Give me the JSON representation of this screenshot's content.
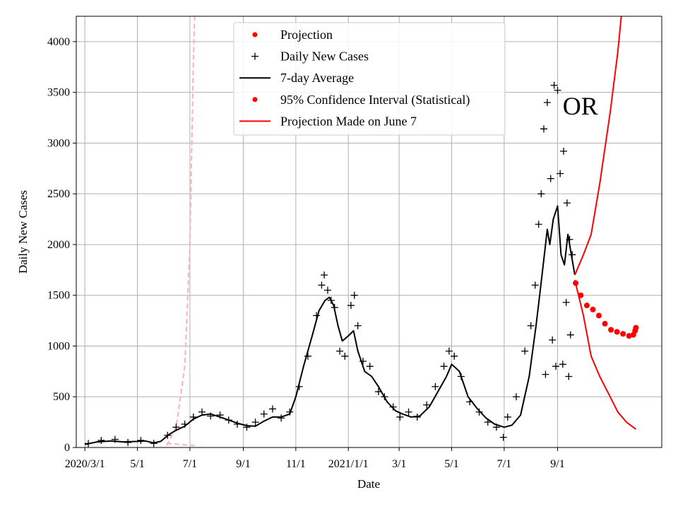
{
  "chart_data": {
    "type": "line",
    "title": "",
    "xlabel": "Date",
    "ylabel": "Daily New Cases",
    "x_unit": "date",
    "xlim": [
      "2020-02-20",
      "2021-12-31"
    ],
    "ylim": [
      0,
      4250
    ],
    "grid": true,
    "legend_placement": "top-center",
    "x_ticks": [
      {
        "date": "2020-03-01",
        "label": "2020/3/1"
      },
      {
        "date": "2020-05-01",
        "label": "5/1"
      },
      {
        "date": "2020-07-01",
        "label": "7/1"
      },
      {
        "date": "2020-09-01",
        "label": "9/1"
      },
      {
        "date": "2020-11-01",
        "label": "11/1"
      },
      {
        "date": "2021-01-01",
        "label": "2021/1/1"
      },
      {
        "date": "2021-03-01",
        "label": "3/1"
      },
      {
        "date": "2021-05-01",
        "label": "5/1"
      },
      {
        "date": "2021-07-01",
        "label": "7/1"
      },
      {
        "date": "2021-09-01",
        "label": "9/1"
      }
    ],
    "y_ticks": [
      0,
      500,
      1000,
      1500,
      2000,
      2500,
      3000,
      3500,
      4000
    ],
    "legend": [
      {
        "label": "Projection",
        "marker": "dot",
        "color": "#ff0000"
      },
      {
        "label": "Daily New Cases",
        "marker": "plus",
        "color": "#000000"
      },
      {
        "label": "7-day Average",
        "marker": "line",
        "color": "#000000"
      },
      {
        "label": "95% Confidence Interval (Statistical)",
        "marker": "dot",
        "color": "#ff0000"
      },
      {
        "label": "Projection Made on June 7",
        "marker": "line",
        "color": "#ff0000"
      }
    ],
    "annotations": [
      {
        "text": "OR",
        "date": "2021-09-07",
        "y": 3280
      }
    ],
    "colors": {
      "cases": "#000000",
      "average": "#000000",
      "projection": "#ff0000",
      "confidence": "#ff0000",
      "old_projection": "#ffb2b2",
      "grid": "#b0b0b0"
    },
    "series": [
      {
        "name": "7-day Average",
        "style": "line",
        "points": [
          [
            "2020-03-01",
            30
          ],
          [
            "2020-03-15",
            55
          ],
          [
            "2020-04-01",
            65
          ],
          [
            "2020-04-15",
            55
          ],
          [
            "2020-05-01",
            60
          ],
          [
            "2020-05-10",
            65
          ],
          [
            "2020-05-20",
            45
          ],
          [
            "2020-05-28",
            60
          ],
          [
            "2020-06-07",
            130
          ],
          [
            "2020-06-15",
            170
          ],
          [
            "2020-06-25",
            210
          ],
          [
            "2020-07-05",
            280
          ],
          [
            "2020-07-15",
            320
          ],
          [
            "2020-07-25",
            330
          ],
          [
            "2020-08-05",
            300
          ],
          [
            "2020-08-15",
            270
          ],
          [
            "2020-08-25",
            240
          ],
          [
            "2020-09-05",
            215
          ],
          [
            "2020-09-15",
            210
          ],
          [
            "2020-09-25",
            260
          ],
          [
            "2020-10-05",
            300
          ],
          [
            "2020-10-15",
            300
          ],
          [
            "2020-10-25",
            330
          ],
          [
            "2020-11-01",
            500
          ],
          [
            "2020-11-10",
            800
          ],
          [
            "2020-11-20",
            1100
          ],
          [
            "2020-11-28",
            1350
          ],
          [
            "2020-12-05",
            1450
          ],
          [
            "2020-12-10",
            1480
          ],
          [
            "2020-12-15",
            1400
          ],
          [
            "2020-12-20",
            1200
          ],
          [
            "2020-12-25",
            1050
          ],
          [
            "2021-01-01",
            1100
          ],
          [
            "2021-01-07",
            1150
          ],
          [
            "2021-01-12",
            950
          ],
          [
            "2021-01-20",
            750
          ],
          [
            "2021-01-28",
            700
          ],
          [
            "2021-02-05",
            600
          ],
          [
            "2021-02-15",
            450
          ],
          [
            "2021-02-25",
            360
          ],
          [
            "2021-03-05",
            330
          ],
          [
            "2021-03-15",
            300
          ],
          [
            "2021-03-25",
            310
          ],
          [
            "2021-04-05",
            400
          ],
          [
            "2021-04-15",
            550
          ],
          [
            "2021-04-25",
            700
          ],
          [
            "2021-05-01",
            820
          ],
          [
            "2021-05-10",
            750
          ],
          [
            "2021-05-20",
            500
          ],
          [
            "2021-05-31",
            380
          ],
          [
            "2021-06-10",
            290
          ],
          [
            "2021-06-20",
            230
          ],
          [
            "2021-07-01",
            200
          ],
          [
            "2021-07-10",
            220
          ],
          [
            "2021-07-20",
            320
          ],
          [
            "2021-07-30",
            700
          ],
          [
            "2021-08-07",
            1200
          ],
          [
            "2021-08-14",
            1700
          ],
          [
            "2021-08-20",
            2150
          ],
          [
            "2021-08-23",
            2000
          ],
          [
            "2021-08-27",
            2250
          ],
          [
            "2021-09-01",
            2380
          ],
          [
            "2021-09-05",
            1900
          ],
          [
            "2021-09-09",
            1800
          ],
          [
            "2021-09-13",
            2100
          ],
          [
            "2021-09-17",
            1900
          ],
          [
            "2021-09-21",
            1700
          ]
        ]
      },
      {
        "name": "Daily New Cases",
        "style": "plus",
        "points": [
          [
            "2020-03-05",
            40
          ],
          [
            "2020-03-20",
            70
          ],
          [
            "2020-04-05",
            80
          ],
          [
            "2020-04-20",
            50
          ],
          [
            "2020-05-05",
            70
          ],
          [
            "2020-05-20",
            40
          ],
          [
            "2020-06-05",
            120
          ],
          [
            "2020-06-15",
            200
          ],
          [
            "2020-06-25",
            230
          ],
          [
            "2020-07-05",
            300
          ],
          [
            "2020-07-15",
            350
          ],
          [
            "2020-07-25",
            310
          ],
          [
            "2020-08-05",
            320
          ],
          [
            "2020-08-15",
            270
          ],
          [
            "2020-08-25",
            230
          ],
          [
            "2020-09-05",
            200
          ],
          [
            "2020-09-15",
            250
          ],
          [
            "2020-09-25",
            330
          ],
          [
            "2020-10-05",
            380
          ],
          [
            "2020-10-15",
            290
          ],
          [
            "2020-10-25",
            350
          ],
          [
            "2020-11-05",
            600
          ],
          [
            "2020-11-15",
            900
          ],
          [
            "2020-11-25",
            1300
          ],
          [
            "2020-12-01",
            1600
          ],
          [
            "2020-12-04",
            1700
          ],
          [
            "2020-12-08",
            1550
          ],
          [
            "2020-12-12",
            1450
          ],
          [
            "2020-12-16",
            1380
          ],
          [
            "2020-12-22",
            950
          ],
          [
            "2020-12-28",
            900
          ],
          [
            "2021-01-04",
            1400
          ],
          [
            "2021-01-08",
            1500
          ],
          [
            "2021-01-12",
            1200
          ],
          [
            "2021-01-18",
            850
          ],
          [
            "2021-01-26",
            800
          ],
          [
            "2021-02-05",
            550
          ],
          [
            "2021-02-12",
            500
          ],
          [
            "2021-02-22",
            400
          ],
          [
            "2021-03-02",
            300
          ],
          [
            "2021-03-12",
            350
          ],
          [
            "2021-03-22",
            300
          ],
          [
            "2021-04-02",
            420
          ],
          [
            "2021-04-12",
            600
          ],
          [
            "2021-04-22",
            800
          ],
          [
            "2021-04-28",
            950
          ],
          [
            "2021-05-04",
            900
          ],
          [
            "2021-05-12",
            700
          ],
          [
            "2021-05-22",
            450
          ],
          [
            "2021-06-02",
            350
          ],
          [
            "2021-06-12",
            250
          ],
          [
            "2021-06-22",
            200
          ],
          [
            "2021-06-30",
            100
          ],
          [
            "2021-07-05",
            300
          ],
          [
            "2021-07-15",
            500
          ],
          [
            "2021-07-25",
            950
          ],
          [
            "2021-08-01",
            1200
          ],
          [
            "2021-08-06",
            1600
          ],
          [
            "2021-08-10",
            2200
          ],
          [
            "2021-08-13",
            2500
          ],
          [
            "2021-08-16",
            3140
          ],
          [
            "2021-08-20",
            3400
          ],
          [
            "2021-08-24",
            2650
          ],
          [
            "2021-08-28",
            3570
          ],
          [
            "2021-09-01",
            3520
          ],
          [
            "2021-09-04",
            2700
          ],
          [
            "2021-09-08",
            2920
          ],
          [
            "2021-09-12",
            2410
          ],
          [
            "2021-09-15",
            2050
          ],
          [
            "2021-09-18",
            1900
          ],
          [
            "2021-08-18",
            720
          ],
          [
            "2021-08-30",
            800
          ],
          [
            "2021-09-07",
            820
          ],
          [
            "2021-09-14",
            700
          ],
          [
            "2021-09-11",
            1430
          ],
          [
            "2021-08-26",
            1060
          ],
          [
            "2021-09-16",
            1110
          ]
        ]
      },
      {
        "name": "Projection",
        "style": "dots",
        "points": [
          [
            "2021-09-22",
            1620
          ],
          [
            "2021-09-28",
            1500
          ],
          [
            "2021-10-05",
            1400
          ],
          [
            "2021-10-12",
            1360
          ],
          [
            "2021-10-19",
            1300
          ],
          [
            "2021-10-26",
            1220
          ],
          [
            "2021-11-02",
            1160
          ],
          [
            "2021-11-09",
            1140
          ],
          [
            "2021-11-16",
            1120
          ],
          [
            "2021-11-23",
            1100
          ],
          [
            "2021-11-28",
            1110
          ],
          [
            "2021-11-30",
            1150
          ],
          [
            "2021-12-01",
            1180
          ]
        ]
      },
      {
        "name": "95% Confidence Interval (Statistical)",
        "style": "line",
        "band": "upper",
        "points": [
          [
            "2021-09-21",
            1700
          ],
          [
            "2021-10-01",
            1900
          ],
          [
            "2021-10-10",
            2100
          ],
          [
            "2021-10-20",
            2600
          ],
          [
            "2021-11-01",
            3300
          ],
          [
            "2021-11-10",
            3900
          ],
          [
            "2021-11-18",
            4600
          ]
        ]
      },
      {
        "name": "95% Confidence Interval (Statistical)",
        "style": "line",
        "band": "lower",
        "points": [
          [
            "2021-09-21",
            1650
          ],
          [
            "2021-10-01",
            1300
          ],
          [
            "2021-10-10",
            900
          ],
          [
            "2021-10-20",
            700
          ],
          [
            "2021-11-01",
            500
          ],
          [
            "2021-11-10",
            350
          ],
          [
            "2021-11-20",
            250
          ],
          [
            "2021-12-01",
            180
          ]
        ]
      },
      {
        "name": "Projection Made on June 7",
        "style": "dashed",
        "band": "upper",
        "points": [
          [
            "2020-06-04",
            20
          ],
          [
            "2020-06-15",
            200
          ],
          [
            "2020-06-25",
            800
          ],
          [
            "2020-07-01",
            2000
          ],
          [
            "2020-07-05",
            3800
          ],
          [
            "2020-07-07",
            4400
          ]
        ]
      },
      {
        "name": "Projection Made on June 7",
        "style": "dashed",
        "band": "lower",
        "points": [
          [
            "2020-06-04",
            40
          ],
          [
            "2020-06-20",
            30
          ],
          [
            "2020-07-10",
            15
          ]
        ]
      }
    ]
  }
}
